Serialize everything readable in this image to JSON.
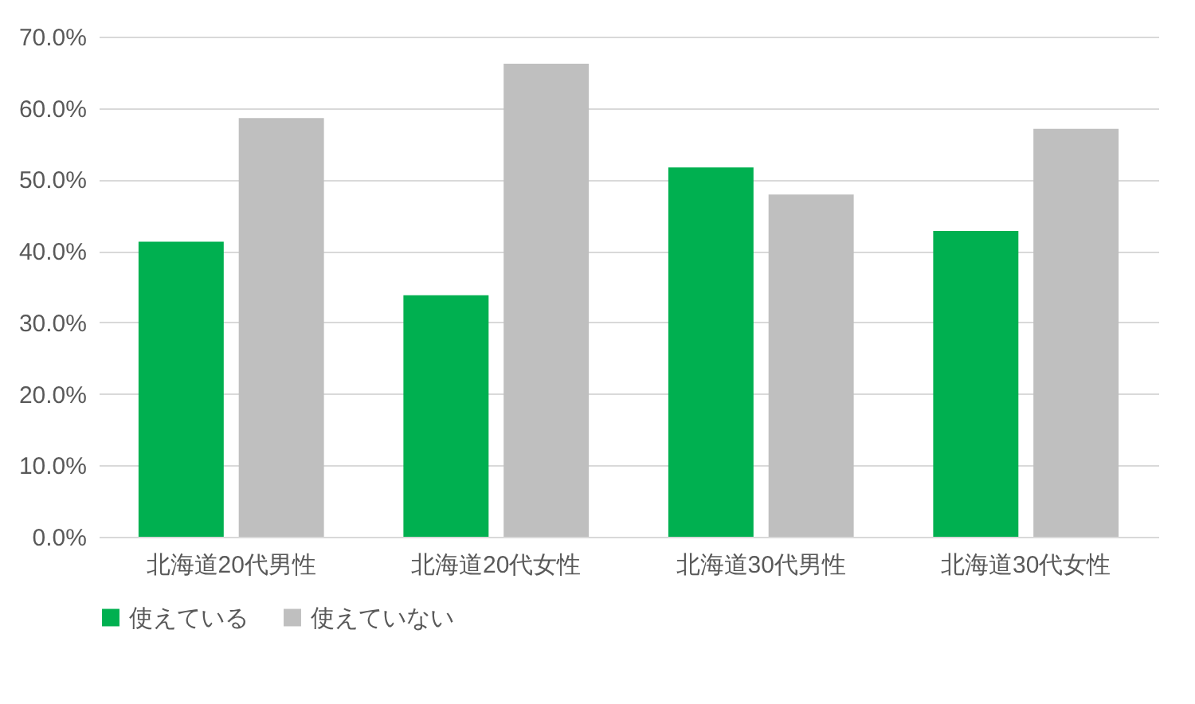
{
  "chart_data": {
    "type": "bar",
    "categories": [
      "北海道20代男性",
      "北海道20代女性",
      "北海道30代男性",
      "北海道30代女性"
    ],
    "series": [
      {
        "name": "使えている",
        "color": "#00b050",
        "values": [
          41.3,
          33.8,
          51.7,
          42.8
        ]
      },
      {
        "name": "使えていない",
        "color": "#bfbfbf",
        "values": [
          58.6,
          66.2,
          47.9,
          57.1
        ]
      }
    ],
    "ylim": [
      0,
      70
    ],
    "yticks": [
      {
        "value": 0,
        "label": "0.0%"
      },
      {
        "value": 10,
        "label": "10.0%"
      },
      {
        "value": 20,
        "label": "20.0%"
      },
      {
        "value": 30,
        "label": "30.0%"
      },
      {
        "value": 40,
        "label": "40.0%"
      },
      {
        "value": 50,
        "label": "50.0%"
      },
      {
        "value": 60,
        "label": "60.0%"
      },
      {
        "value": 70,
        "label": "70.0%"
      }
    ],
    "grid": "y",
    "legend": "bottom"
  }
}
